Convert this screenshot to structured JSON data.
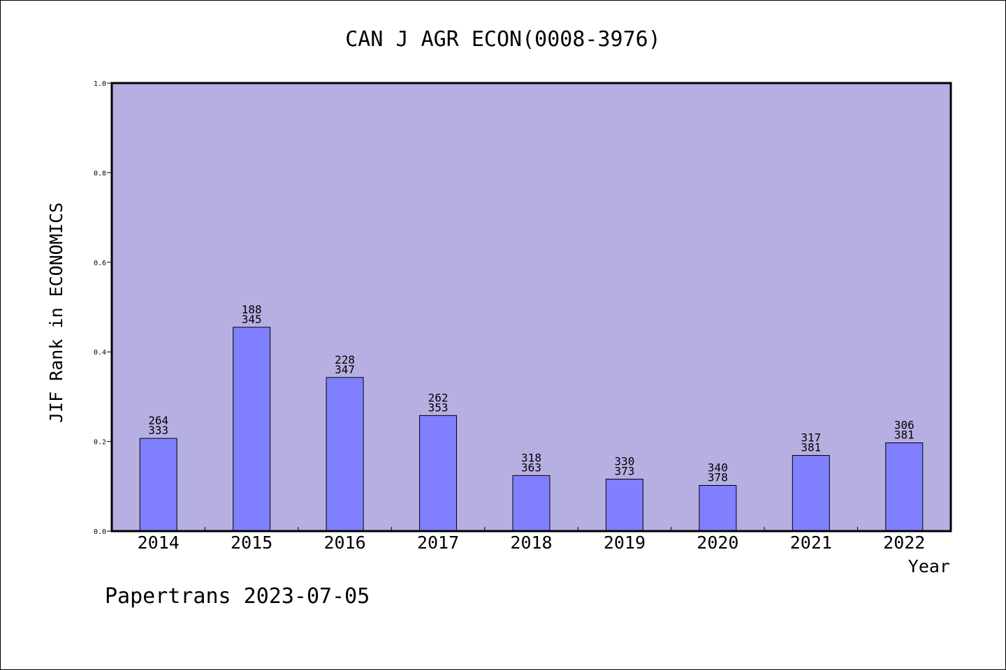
{
  "chart_data": {
    "type": "bar",
    "title": "CAN J AGR ECON(0008-3976)",
    "xlabel": "Year",
    "ylabel": "JIF Rank in ECONOMICS",
    "ylim": [
      0,
      1.0
    ],
    "yticks": [
      "0.0",
      "0.2",
      "0.4",
      "0.6",
      "0.8",
      "1.0"
    ],
    "categories": [
      "2014",
      "2015",
      "2016",
      "2017",
      "2018",
      "2019",
      "2020",
      "2021",
      "2022"
    ],
    "values": [
      0.207,
      0.455,
      0.343,
      0.258,
      0.124,
      0.116,
      0.102,
      0.169,
      0.197
    ],
    "bar_labels": [
      [
        "264",
        "333"
      ],
      [
        "188",
        "345"
      ],
      [
        "228",
        "347"
      ],
      [
        "262",
        "353"
      ],
      [
        "318",
        "363"
      ],
      [
        "330",
        "373"
      ],
      [
        "340",
        "378"
      ],
      [
        "317",
        "381"
      ],
      [
        "306",
        "381"
      ]
    ],
    "grid": false,
    "colors": {
      "plot_background": "#b6b0e2",
      "bar_fill": "#8080ff",
      "bar_stroke": "#000000"
    }
  },
  "footer": {
    "credit": "Papertrans 2023-07-05"
  }
}
